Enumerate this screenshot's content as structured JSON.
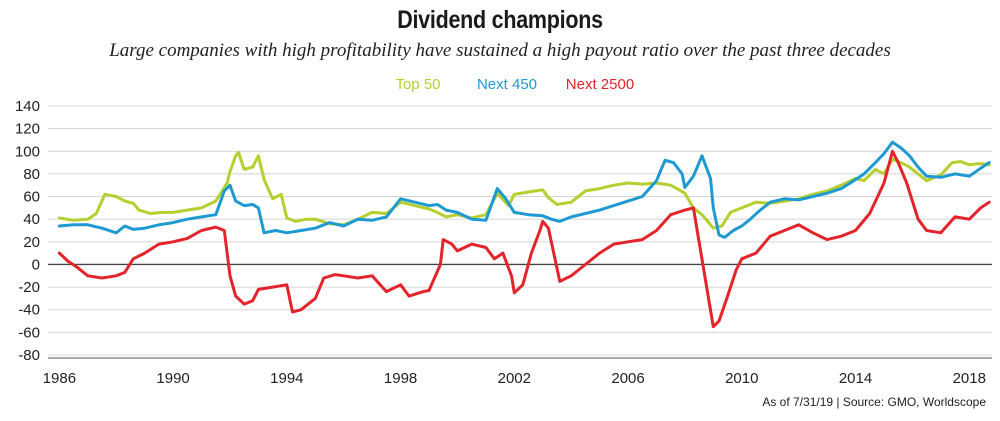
{
  "header": {
    "title": "Dividend champions",
    "subtitle": "Large companies with high profitability have sustained a high payout ratio over the past three decades"
  },
  "footnote": "As of 7/31/19 | Source: GMO, Worldscope",
  "chart_data": {
    "type": "line",
    "title": "Dividend champions",
    "xlabel": "",
    "ylabel": "",
    "xlim": [
      1985.6,
      2018.8
    ],
    "ylim": [
      -80,
      140
    ],
    "yticks": [
      140,
      120,
      100,
      80,
      60,
      40,
      20,
      0,
      -20,
      -40,
      -60,
      -80
    ],
    "xticks": [
      1986,
      1990,
      1994,
      1998,
      2002,
      2006,
      2010,
      2014,
      2018
    ],
    "grid": "horizontal",
    "legend_position": "top-center",
    "series": [
      {
        "name": "Top 50",
        "color": "#b5cf2f",
        "points": [
          [
            1986,
            41
          ],
          [
            1986.5,
            39
          ],
          [
            1987,
            40
          ],
          [
            1987.3,
            45
          ],
          [
            1987.6,
            62
          ],
          [
            1988,
            60
          ],
          [
            1988.3,
            56
          ],
          [
            1988.6,
            54
          ],
          [
            1988.8,
            48
          ],
          [
            1989.2,
            45
          ],
          [
            1989.6,
            46
          ],
          [
            1990,
            46
          ],
          [
            1990.5,
            48
          ],
          [
            1991,
            50
          ],
          [
            1991.5,
            56
          ],
          [
            1991.9,
            72
          ],
          [
            1992,
            82
          ],
          [
            1992.2,
            96
          ],
          [
            1992.3,
            99
          ],
          [
            1992.5,
            84
          ],
          [
            1992.8,
            86
          ],
          [
            1993,
            96
          ],
          [
            1993.2,
            75
          ],
          [
            1993.5,
            58
          ],
          [
            1993.8,
            62
          ],
          [
            1994,
            41
          ],
          [
            1994.3,
            38
          ],
          [
            1994.7,
            40
          ],
          [
            1995,
            40
          ],
          [
            1995.5,
            36
          ],
          [
            1996,
            35
          ],
          [
            1996.5,
            40
          ],
          [
            1997,
            46
          ],
          [
            1997.5,
            45
          ],
          [
            1998,
            55
          ],
          [
            1998.5,
            52
          ],
          [
            1999,
            49
          ],
          [
            1999.3,
            46
          ],
          [
            1999.6,
            42
          ],
          [
            2000,
            44
          ],
          [
            2000.5,
            41
          ],
          [
            2001,
            44
          ],
          [
            2001.4,
            63
          ],
          [
            2001.8,
            52
          ],
          [
            2002,
            62
          ],
          [
            2002.5,
            64
          ],
          [
            2003,
            66
          ],
          [
            2003.2,
            59
          ],
          [
            2003.5,
            53
          ],
          [
            2004,
            55
          ],
          [
            2004.5,
            65
          ],
          [
            2005,
            67
          ],
          [
            2005.5,
            70
          ],
          [
            2006,
            72
          ],
          [
            2006.5,
            71
          ],
          [
            2007,
            72
          ],
          [
            2007.5,
            70
          ],
          [
            2008,
            63
          ],
          [
            2008.3,
            50
          ],
          [
            2008.6,
            44
          ],
          [
            2008.8,
            38
          ],
          [
            2009,
            32
          ],
          [
            2009.3,
            34
          ],
          [
            2009.6,
            46
          ],
          [
            2010,
            50
          ],
          [
            2010.5,
            55
          ],
          [
            2011,
            54
          ],
          [
            2011.5,
            56
          ],
          [
            2012,
            58
          ],
          [
            2012.5,
            62
          ],
          [
            2013,
            65
          ],
          [
            2013.5,
            70
          ],
          [
            2014,
            76
          ],
          [
            2014.3,
            74
          ],
          [
            2014.7,
            84
          ],
          [
            2015,
            80
          ],
          [
            2015.3,
            93
          ],
          [
            2015.6,
            90
          ],
          [
            2015.9,
            86
          ],
          [
            2016.2,
            80
          ],
          [
            2016.5,
            74
          ],
          [
            2017,
            79
          ],
          [
            2017.4,
            90
          ],
          [
            2017.7,
            91
          ],
          [
            2018,
            88
          ],
          [
            2018.3,
            89
          ],
          [
            2018.5,
            89
          ],
          [
            2018.7,
            88
          ]
        ]
      },
      {
        "name": "Next 450",
        "color": "#1d9ad2",
        "points": [
          [
            1986,
            34
          ],
          [
            1986.5,
            35
          ],
          [
            1987,
            35
          ],
          [
            1987.5,
            32
          ],
          [
            1988,
            28
          ],
          [
            1988.3,
            34
          ],
          [
            1988.6,
            31
          ],
          [
            1989,
            32
          ],
          [
            1989.5,
            35
          ],
          [
            1990,
            37
          ],
          [
            1990.5,
            40
          ],
          [
            1991,
            42
          ],
          [
            1991.5,
            44
          ],
          [
            1991.8,
            65
          ],
          [
            1992,
            70
          ],
          [
            1992.2,
            56
          ],
          [
            1992.5,
            52
          ],
          [
            1992.8,
            53
          ],
          [
            1993,
            50
          ],
          [
            1993.2,
            28
          ],
          [
            1993.6,
            30
          ],
          [
            1994,
            28
          ],
          [
            1994.5,
            30
          ],
          [
            1995,
            32
          ],
          [
            1995.5,
            37
          ],
          [
            1996,
            34
          ],
          [
            1996.5,
            40
          ],
          [
            1997,
            39
          ],
          [
            1997.5,
            42
          ],
          [
            1998,
            58
          ],
          [
            1998.5,
            55
          ],
          [
            1999,
            52
          ],
          [
            1999.3,
            53
          ],
          [
            1999.6,
            48
          ],
          [
            2000,
            46
          ],
          [
            2000.5,
            40
          ],
          [
            2001,
            39
          ],
          [
            2001.4,
            67
          ],
          [
            2001.7,
            58
          ],
          [
            2002,
            46
          ],
          [
            2002.5,
            44
          ],
          [
            2003,
            43
          ],
          [
            2003.3,
            40
          ],
          [
            2003.6,
            38
          ],
          [
            2004,
            42
          ],
          [
            2004.5,
            45
          ],
          [
            2005,
            48
          ],
          [
            2005.5,
            52
          ],
          [
            2006,
            56
          ],
          [
            2006.5,
            60
          ],
          [
            2007,
            74
          ],
          [
            2007.3,
            92
          ],
          [
            2007.6,
            90
          ],
          [
            2007.9,
            80
          ],
          [
            2008,
            68
          ],
          [
            2008.3,
            78
          ],
          [
            2008.6,
            96
          ],
          [
            2008.9,
            76
          ],
          [
            2009,
            50
          ],
          [
            2009.2,
            26
          ],
          [
            2009.4,
            24
          ],
          [
            2009.7,
            30
          ],
          [
            2010,
            34
          ],
          [
            2010.3,
            40
          ],
          [
            2010.6,
            47
          ],
          [
            2011,
            55
          ],
          [
            2011.5,
            58
          ],
          [
            2012,
            57
          ],
          [
            2012.5,
            60
          ],
          [
            2013,
            63
          ],
          [
            2013.5,
            67
          ],
          [
            2014,
            75
          ],
          [
            2014.3,
            80
          ],
          [
            2014.7,
            90
          ],
          [
            2015,
            98
          ],
          [
            2015.3,
            108
          ],
          [
            2015.6,
            103
          ],
          [
            2015.9,
            96
          ],
          [
            2016.2,
            86
          ],
          [
            2016.5,
            78
          ],
          [
            2017,
            77
          ],
          [
            2017.5,
            80
          ],
          [
            2018,
            78
          ],
          [
            2018.4,
            85
          ],
          [
            2018.7,
            90
          ]
        ]
      },
      {
        "name": "Next 2500",
        "color": "#e3242b",
        "points": [
          [
            1986,
            10
          ],
          [
            1986.3,
            3
          ],
          [
            1986.6,
            -2
          ],
          [
            1987,
            -10
          ],
          [
            1987.5,
            -12
          ],
          [
            1988,
            -10
          ],
          [
            1988.3,
            -7
          ],
          [
            1988.6,
            5
          ],
          [
            1989,
            10
          ],
          [
            1989.5,
            18
          ],
          [
            1990,
            20
          ],
          [
            1990.5,
            23
          ],
          [
            1991,
            30
          ],
          [
            1991.5,
            33
          ],
          [
            1991.8,
            30
          ],
          [
            1992,
            -10
          ],
          [
            1992.2,
            -28
          ],
          [
            1992.5,
            -35
          ],
          [
            1992.8,
            -32
          ],
          [
            1993,
            -22
          ],
          [
            1993.5,
            -20
          ],
          [
            1994,
            -18
          ],
          [
            1994.2,
            -42
          ],
          [
            1994.5,
            -40
          ],
          [
            1995,
            -30
          ],
          [
            1995.3,
            -12
          ],
          [
            1995.7,
            -9
          ],
          [
            1996,
            -10
          ],
          [
            1996.5,
            -12
          ],
          [
            1997,
            -10
          ],
          [
            1997.5,
            -24
          ],
          [
            1998,
            -18
          ],
          [
            1998.3,
            -28
          ],
          [
            1998.8,
            -24
          ],
          [
            1999,
            -23
          ],
          [
            1999.4,
            0
          ],
          [
            1999.5,
            22
          ],
          [
            1999.8,
            18
          ],
          [
            2000,
            12
          ],
          [
            2000.5,
            18
          ],
          [
            2001,
            15
          ],
          [
            2001.3,
            5
          ],
          [
            2001.6,
            10
          ],
          [
            2001.9,
            -10
          ],
          [
            2002,
            -25
          ],
          [
            2002.3,
            -18
          ],
          [
            2002.6,
            10
          ],
          [
            2002.9,
            30
          ],
          [
            2003,
            38
          ],
          [
            2003.2,
            32
          ],
          [
            2003.6,
            -15
          ],
          [
            2004,
            -10
          ],
          [
            2004.5,
            0
          ],
          [
            2005,
            10
          ],
          [
            2005.5,
            18
          ],
          [
            2006,
            20
          ],
          [
            2006.5,
            22
          ],
          [
            2007,
            30
          ],
          [
            2007.5,
            44
          ],
          [
            2008,
            48
          ],
          [
            2008.3,
            50
          ],
          [
            2009,
            -55
          ],
          [
            2009.2,
            -50
          ],
          [
            2009.5,
            -28
          ],
          [
            2009.8,
            -5
          ],
          [
            2010,
            5
          ],
          [
            2010.5,
            10
          ],
          [
            2011,
            25
          ],
          [
            2011.5,
            30
          ],
          [
            2012,
            35
          ],
          [
            2012.5,
            28
          ],
          [
            2013,
            22
          ],
          [
            2013.5,
            25
          ],
          [
            2014,
            30
          ],
          [
            2014.5,
            45
          ],
          [
            2015,
            72
          ],
          [
            2015.3,
            100
          ],
          [
            2015.5,
            90
          ],
          [
            2015.8,
            72
          ],
          [
            2016.2,
            40
          ],
          [
            2016.5,
            30
          ],
          [
            2017,
            28
          ],
          [
            2017.5,
            42
          ],
          [
            2018,
            40
          ],
          [
            2018.4,
            50
          ],
          [
            2018.7,
            55
          ]
        ]
      }
    ]
  }
}
